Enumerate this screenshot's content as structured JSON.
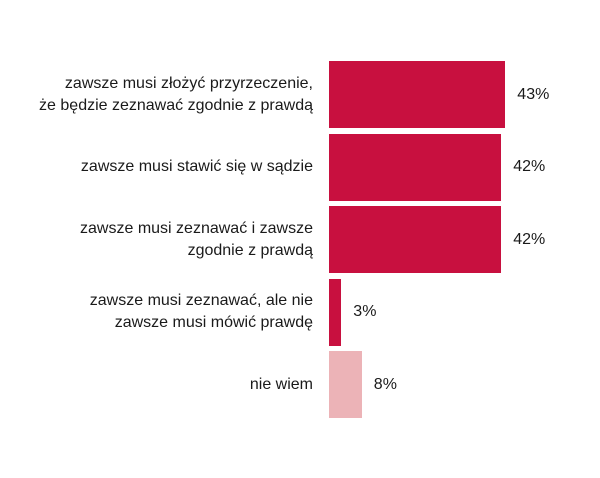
{
  "chart_data": {
    "type": "bar",
    "orientation": "horizontal",
    "categories": [
      "zawsze musi złożyć przyrzeczenie,\nże będzie zeznawać zgodnie z prawdą",
      "zawsze musi stawić się w sądzie",
      "zawsze musi zeznawać i zawsze\nzgodnie z prawdą",
      "zawsze musi zeznawać, ale nie\nzawsze musi mówić prawdę",
      "nie wiem"
    ],
    "values": [
      43,
      42,
      42,
      3,
      8
    ],
    "value_labels": [
      "43%",
      "42%",
      "42%",
      "3%",
      "8%"
    ],
    "bar_colors": [
      "#c8103f",
      "#c8103f",
      "#c8103f",
      "#c8103f",
      "#ecb3b7"
    ],
    "xlim": [
      0,
      50
    ],
    "grid": false,
    "legend": "none"
  }
}
